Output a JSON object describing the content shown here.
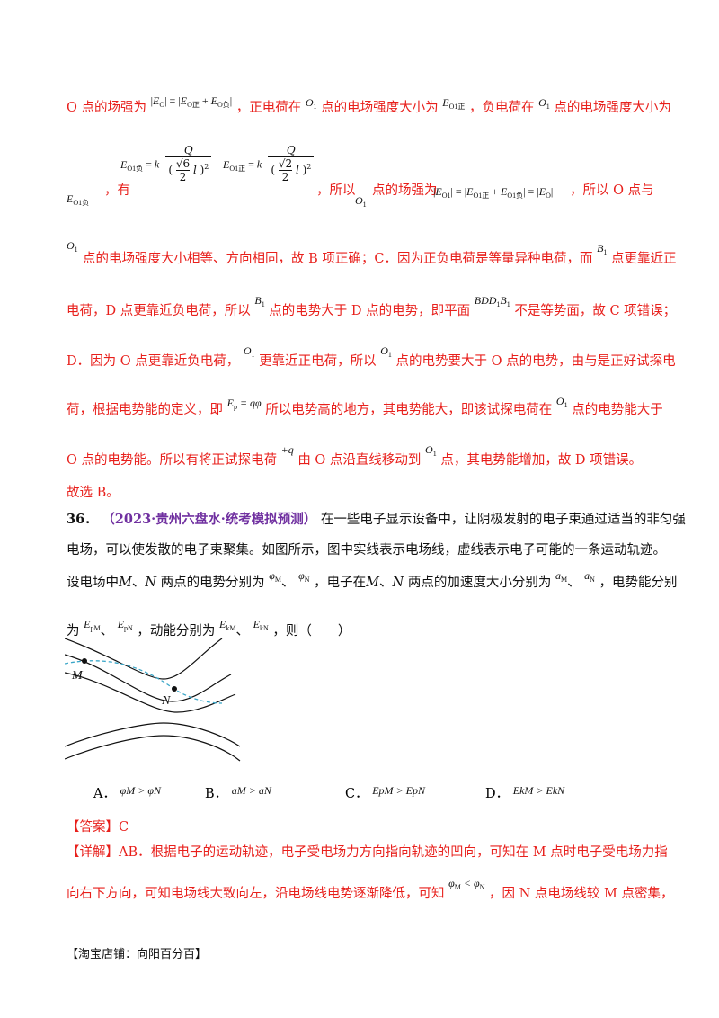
{
  "para1": {
    "l1_a": "O 点的场强为",
    "l1_b": "，正电荷在",
    "l1_c": "点的电场强度大小为",
    "l1_d": "，负电荷在",
    "l1_e": "点的电场强度大小为",
    "l2_a": "，有",
    "l2_b": "，所以",
    "l2_c": "点的场强为",
    "l2_d": "，所以 O 点与",
    "l3": "点的电场强度大小相等、方向相同，故 B 项正确；C．因为正负电荷是等量异种电荷，而",
    "l3_b": "点更靠近正",
    "l4_a": "电荷，D 点更靠近负电荷，所以",
    "l4_b": "点的电势大于 D 点的电势，即平面",
    "l4_c": "不是等势面，故 C 项错误；",
    "l5_a": "D．因为 O 点更靠近负电荷，",
    "l5_b": "更靠近正电荷，所以",
    "l5_c": "点的电势要大于 O 点的电势，由与是正好试探电",
    "l6_a": "荷，根据电势能的定义，即",
    "l6_b": "所以电势高的地方，其电势能大，即该试探电荷在",
    "l6_c": "点的电势能大于",
    "l7_a": "O 点的电势能。所以有将正试探电荷",
    "l7_b": "由 O 点沿直线移动到",
    "l7_c": "点，其电势能增加，故 D 项错误。",
    "l8": "故选 B。"
  },
  "question": {
    "number": "36．",
    "source": "（2023·贵州六盘水·统考模拟预测）",
    "text1": "在一些电子显示设备中，让阴极发射的电子束通过适当的非匀强",
    "text2": "电场，可以使发散的电子束聚集。如图所示，图中实线表示电场线，虚线表示电子可能的一条运动轨迹。",
    "text3_a": "设电场中",
    "text3_b": "两点的电势分别为",
    "text3_c": "，电子在",
    "text3_d": "两点的加速度大小分别为",
    "text3_e": "，电势能分别",
    "text4_a": "为",
    "text4_b": "，动能分别为",
    "text4_c": "，则（　　）",
    "label_M": "M",
    "label_N": "N",
    "options": [
      {
        "label": "A．",
        "math": "φM > φN"
      },
      {
        "label": "B．",
        "math": "aM > aN"
      },
      {
        "label": "C．",
        "math": "EpM > EpN"
      },
      {
        "label": "D．",
        "math": "EkM > EkN"
      }
    ]
  },
  "answer": {
    "tag": "【答案】",
    "value": "C",
    "detail_tag": "【详解】",
    "detail1_a": "AB．根据电子的运动轨迹，电子受电场力方向指向轨迹的凹向，可知在 M 点时电子受电场力指",
    "detail2_a": "向右下方向，可知电场线大致向左，沿电场线电势逐渐降低，可知",
    "detail2_b": "，因 N 点电场线较 M 点密集，"
  },
  "footer": "【淘宝店铺：向阳百分百】",
  "colors": {
    "red": "#e8201c",
    "source": "#7030a0",
    "trajectory": "#3aa6c8"
  }
}
